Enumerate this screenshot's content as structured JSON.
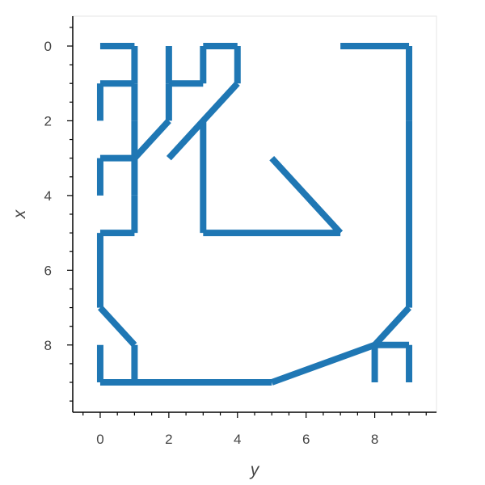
{
  "chart_data": {
    "type": "line",
    "xlabel": "y",
    "ylabel": "x",
    "xlim": [
      -0.8,
      9.8
    ],
    "ylim": [
      9.8,
      -0.8
    ],
    "y_axis_inverted": true,
    "x_ticks": [
      0,
      2,
      4,
      6,
      8
    ],
    "y_ticks": [
      0,
      2,
      4,
      6,
      8
    ],
    "grid": false,
    "series_color": "#1f77b4",
    "segments": [
      [
        [
          0,
          0
        ],
        [
          1,
          0
        ]
      ],
      [
        [
          1,
          0
        ],
        [
          1,
          1
        ]
      ],
      [
        [
          0,
          1
        ],
        [
          1,
          1
        ]
      ],
      [
        [
          0,
          1
        ],
        [
          0,
          2
        ]
      ],
      [
        [
          1,
          1
        ],
        [
          1,
          2
        ]
      ],
      [
        [
          1,
          2
        ],
        [
          1,
          3
        ]
      ],
      [
        [
          2,
          0
        ],
        [
          2,
          1
        ]
      ],
      [
        [
          2,
          1
        ],
        [
          3,
          1
        ]
      ],
      [
        [
          2,
          1
        ],
        [
          2,
          2
        ]
      ],
      [
        [
          2,
          2
        ],
        [
          1,
          3
        ]
      ],
      [
        [
          3,
          0
        ],
        [
          3,
          1
        ]
      ],
      [
        [
          3,
          0
        ],
        [
          4,
          0
        ]
      ],
      [
        [
          4,
          0
        ],
        [
          4,
          1
        ]
      ],
      [
        [
          4,
          1
        ],
        [
          2,
          3
        ]
      ],
      [
        [
          0,
          3
        ],
        [
          1,
          3
        ]
      ],
      [
        [
          0,
          3
        ],
        [
          0,
          4
        ]
      ],
      [
        [
          1,
          3
        ],
        [
          1,
          4
        ]
      ],
      [
        [
          1,
          4
        ],
        [
          1,
          5
        ]
      ],
      [
        [
          3,
          2
        ],
        [
          3,
          5
        ]
      ],
      [
        [
          3,
          5
        ],
        [
          7,
          5
        ]
      ],
      [
        [
          5,
          3
        ],
        [
          7,
          5
        ]
      ],
      [
        [
          1,
          5
        ],
        [
          0,
          5
        ]
      ],
      [
        [
          0,
          5
        ],
        [
          0,
          7
        ]
      ],
      [
        [
          0,
          7
        ],
        [
          1,
          8
        ]
      ],
      [
        [
          0,
          8
        ],
        [
          0,
          9
        ]
      ],
      [
        [
          1,
          8
        ],
        [
          1,
          9
        ]
      ],
      [
        [
          0,
          9
        ],
        [
          5,
          9
        ]
      ],
      [
        [
          5,
          9
        ],
        [
          8,
          8
        ]
      ],
      [
        [
          8,
          8
        ],
        [
          9,
          8
        ]
      ],
      [
        [
          8,
          8
        ],
        [
          8,
          9
        ]
      ],
      [
        [
          9,
          8
        ],
        [
          9,
          9
        ]
      ],
      [
        [
          8,
          8
        ],
        [
          9,
          7
        ]
      ],
      [
        [
          7,
          0
        ],
        [
          9,
          0
        ]
      ],
      [
        [
          9,
          0
        ],
        [
          9,
          2
        ]
      ],
      [
        [
          9,
          2
        ],
        [
          9,
          7
        ]
      ]
    ]
  }
}
